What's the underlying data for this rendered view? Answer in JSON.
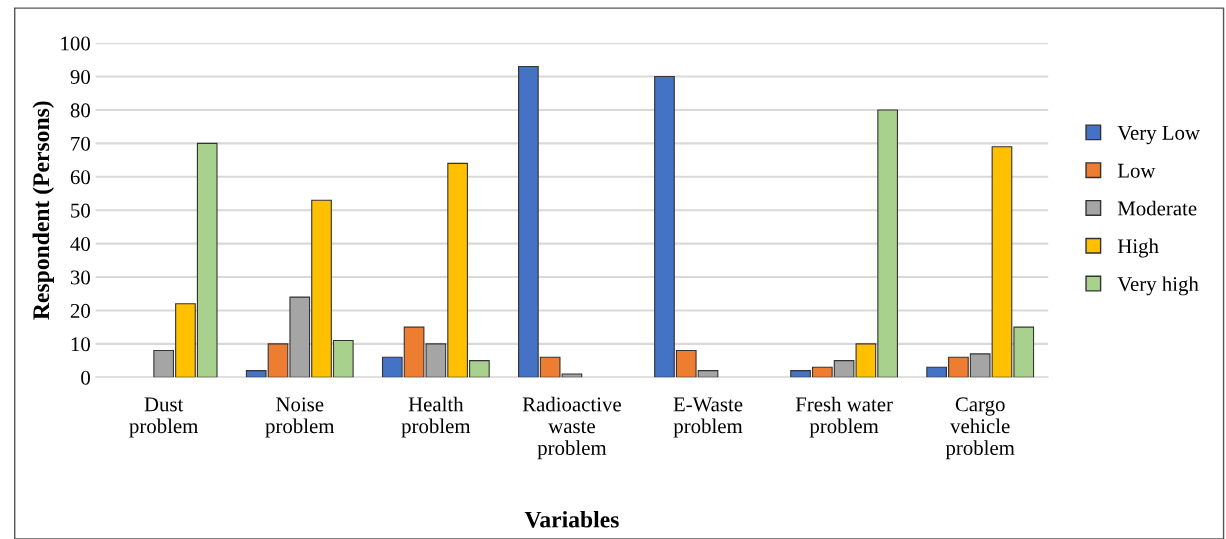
{
  "chart_data": {
    "type": "bar",
    "xlabel": "Variables",
    "ylabel": "Respondent (Persons)",
    "categories": [
      "Dust\nproblem",
      "Noise\nproblem",
      "Health\nproblem",
      "Radioactive\nwaste\nproblem",
      "E-Waste\nproblem",
      "Fresh water\nproblem",
      "Cargo\nvehicle\nproblem"
    ],
    "series": [
      {
        "name": "Very Low",
        "color": "#4472c4",
        "values": [
          null,
          2,
          6,
          93,
          90,
          2,
          3
        ]
      },
      {
        "name": "Low",
        "color": "#ed7d31",
        "values": [
          null,
          10,
          15,
          6,
          8,
          3,
          6
        ]
      },
      {
        "name": "Moderate",
        "color": "#a5a5a5",
        "values": [
          8,
          24,
          10,
          1,
          2,
          5,
          7
        ]
      },
      {
        "name": "High",
        "color": "#ffc000",
        "values": [
          22,
          53,
          64,
          null,
          null,
          10,
          69
        ]
      },
      {
        "name": "Very high",
        "color": "#a9d18e",
        "values": [
          70,
          11,
          5,
          null,
          null,
          80,
          15
        ]
      }
    ],
    "ylim": [
      0,
      100
    ],
    "yticks": [
      0,
      10,
      20,
      30,
      40,
      50,
      60,
      70,
      80,
      90,
      100
    ],
    "grid": "y",
    "legend": "right"
  }
}
